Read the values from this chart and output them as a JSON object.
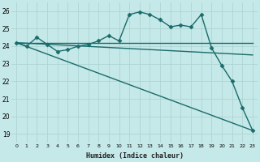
{
  "bg_color": "#c5e8e8",
  "grid_color": "#afd4d4",
  "line_color": "#1a6b6b",
  "x_label": "Humidex (Indice chaleur)",
  "x_ticks": [
    0,
    1,
    2,
    3,
    4,
    5,
    6,
    7,
    8,
    9,
    10,
    11,
    12,
    13,
    14,
    15,
    16,
    17,
    18,
    19,
    20,
    21,
    22,
    23
  ],
  "ylim": [
    18.5,
    26.5
  ],
  "yticks": [
    19,
    20,
    21,
    22,
    23,
    24,
    25,
    26
  ],
  "series": [
    {
      "x": [
        0,
        1,
        2,
        3,
        4,
        5,
        6,
        7,
        8,
        9,
        10,
        11,
        12,
        13,
        14,
        15,
        16,
        17,
        18,
        19,
        20,
        21,
        22,
        23
      ],
      "y": [
        24.2,
        24.0,
        24.5,
        24.1,
        23.7,
        23.8,
        24.0,
        24.1,
        24.3,
        24.6,
        24.3,
        25.8,
        25.95,
        25.8,
        25.5,
        25.1,
        25.2,
        25.1,
        25.8,
        23.9,
        22.9,
        22.0,
        20.5,
        19.2
      ],
      "marker": "D",
      "markersize": 2.5,
      "linewidth": 1.0
    },
    {
      "x": [
        0,
        23
      ],
      "y": [
        24.2,
        24.2
      ],
      "marker": null,
      "markersize": 0,
      "linewidth": 1.0
    },
    {
      "x": [
        0,
        23
      ],
      "y": [
        24.2,
        23.5
      ],
      "marker": null,
      "markersize": 0,
      "linewidth": 1.0
    },
    {
      "x": [
        0,
        23
      ],
      "y": [
        24.2,
        19.2
      ],
      "marker": null,
      "markersize": 0,
      "linewidth": 1.0
    }
  ]
}
